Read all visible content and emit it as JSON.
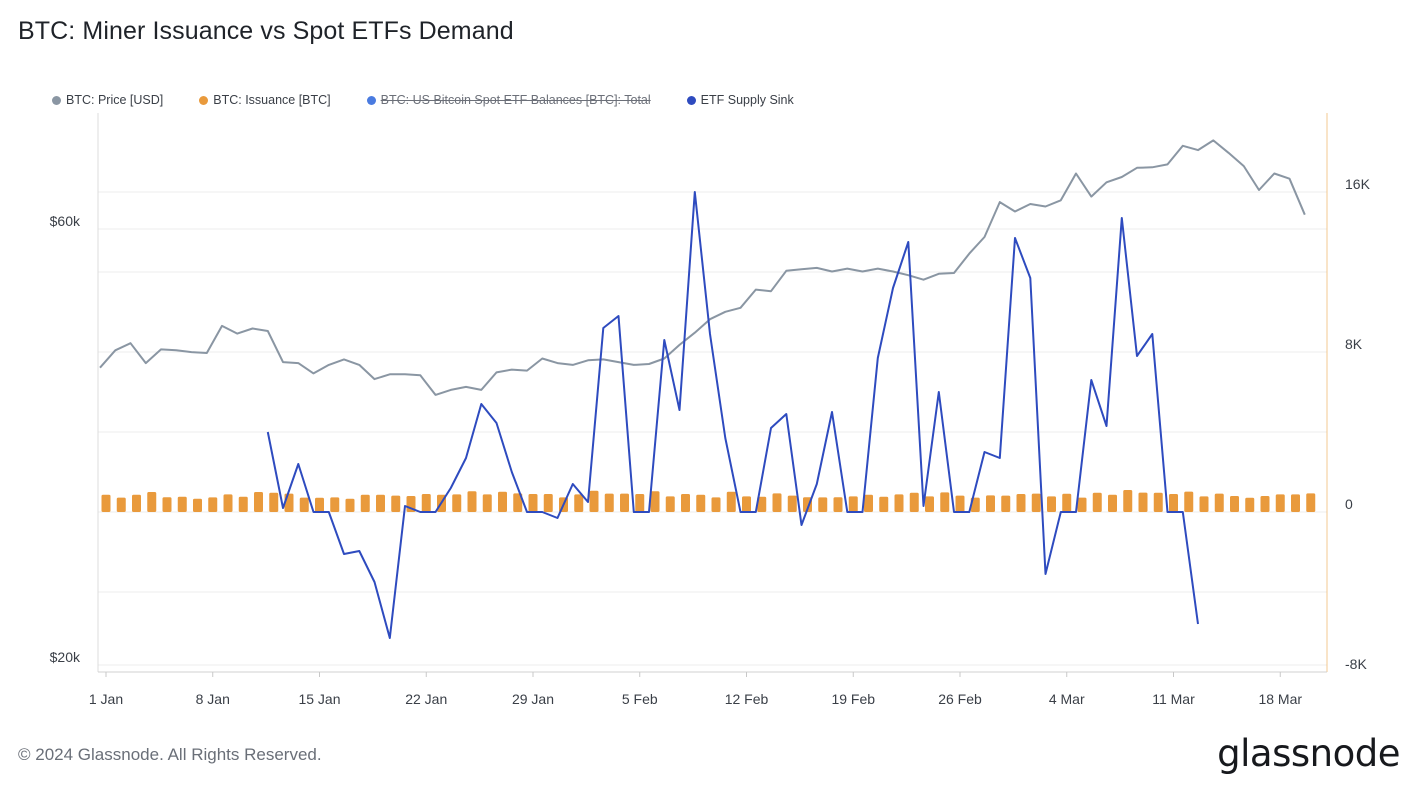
{
  "title": "BTC: Miner Issuance vs Spot ETFs Demand",
  "footer": "© 2024 Glassnode. All Rights Reserved.",
  "logo": "glassnode",
  "colors": {
    "price": "#8a96a3",
    "issuance": "#e99a3c",
    "etf_balances": "#4a7be0",
    "supply_sink": "#2e4bbf",
    "grid": "#ececec",
    "right_axis_line": "#f3c890"
  },
  "legend": [
    {
      "label": "BTC: Price [USD]",
      "color": "#8a96a3",
      "disabled": false
    },
    {
      "label": "BTC: Issuance [BTC]",
      "color": "#e99a3c",
      "disabled": false
    },
    {
      "label": "BTC: US Bitcoin Spot ETF Balances [BTC]: Total",
      "color": "#4a7be0",
      "disabled": true
    },
    {
      "label": "ETF Supply Sink",
      "color": "#2e4bbf",
      "disabled": false
    }
  ],
  "chart_data": {
    "type": "line",
    "title": "BTC: Miner Issuance vs Spot ETFs Demand",
    "grid": true,
    "legend_position": "top-left",
    "x_labels": [
      "1 Jan",
      "8 Jan",
      "15 Jan",
      "22 Jan",
      "29 Jan",
      "5 Feb",
      "12 Feb",
      "19 Feb",
      "26 Feb",
      "4 Mar",
      "11 Mar",
      "18 Mar"
    ],
    "x_start": "2024-01-01",
    "left_axis": {
      "ticks": [
        "$60k",
        "$20k"
      ],
      "tick_values": [
        60000,
        20000
      ],
      "scale": "log"
    },
    "right_axis": {
      "ticks": [
        "16K",
        "8K",
        "0",
        "-8K"
      ],
      "tick_values": [
        16000,
        8000,
        0,
        -8000
      ],
      "ylim": [
        -8000,
        20000
      ]
    },
    "series": [
      {
        "name": "BTC: Price [USD]",
        "axis": "left",
        "start_date": "2024-01-01",
        "values": [
          42300,
          44200,
          45000,
          42800,
          44300,
          44200,
          44000,
          43900,
          47000,
          46100,
          46700,
          46400,
          42900,
          42800,
          41700,
          42600,
          43200,
          42600,
          41100,
          41600,
          41600,
          41500,
          39500,
          40000,
          40300,
          40000,
          41800,
          42100,
          42000,
          43300,
          42800,
          42600,
          43100,
          43200,
          42900,
          42600,
          42700,
          43300,
          44800,
          46200,
          47800,
          48700,
          49200,
          51500,
          51300,
          54000,
          54200,
          54400,
          53900,
          54300,
          53900,
          54300,
          53900,
          53400,
          52800,
          53600,
          53700,
          56400,
          58800,
          64200,
          62700,
          63900,
          63500,
          64500,
          69000,
          65100,
          67500,
          68400,
          70000,
          70100,
          70600,
          74000,
          73200,
          75000,
          72700,
          70300,
          66200,
          69000,
          68100,
          62200
        ]
      },
      {
        "name": "BTC: Issuance [BTC]",
        "axis": "right",
        "type": "bar",
        "start_date": "2024-01-01",
        "values": [
          860,
          720,
          860,
          1000,
          740,
          760,
          660,
          730,
          880,
          760,
          1000,
          960,
          920,
          720,
          710,
          730,
          660,
          860,
          860,
          820,
          800,
          900,
          860,
          880,
          1040,
          880,
          1010,
          930,
          900,
          900,
          730,
          880,
          1060,
          920,
          920,
          900,
          1040,
          780,
          900,
          860,
          730,
          1010,
          780,
          760,
          930,
          820,
          740,
          730,
          740,
          780,
          860,
          760,
          880,
          960,
          780,
          980,
          820,
          720,
          830,
          820,
          900,
          920,
          780,
          910,
          720,
          960,
          860,
          1100,
          970,
          960,
          900,
          1020,
          780,
          920,
          800,
          710,
          800,
          880,
          880,
          930
        ]
      },
      {
        "name": "ETF Supply Sink",
        "axis": "right",
        "start_date": "2024-01-12",
        "values": [
          4000,
          200,
          2400,
          0,
          0,
          -2100,
          -1950,
          -3500,
          -6300,
          300,
          0,
          0,
          1200,
          2700,
          5400,
          4450,
          2000,
          0,
          0,
          -300,
          1400,
          500,
          9200,
          9800,
          0,
          0,
          8600,
          5100,
          16000,
          8900,
          3700,
          0,
          0,
          4200,
          4900,
          -650,
          1400,
          5000,
          0,
          0,
          7700,
          11200,
          13500,
          300,
          6000,
          0,
          0,
          3000,
          2700,
          13700,
          11700,
          -3100,
          0,
          0,
          6600,
          4300,
          14700,
          7800,
          8900,
          0,
          0,
          -5600
        ]
      },
      {
        "name": "BTC: US Bitcoin Spot ETF Balances [BTC]: Total",
        "axis": "right",
        "hidden": true,
        "values": []
      }
    ]
  }
}
